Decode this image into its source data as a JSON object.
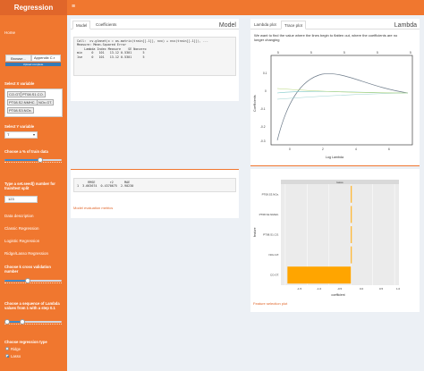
{
  "app": {
    "title": "Regression"
  },
  "header": {
    "menu_icon": "hamburger-icon",
    "menu_glyph": "≡"
  },
  "sidebar": {
    "home": "Home",
    "file_button": "Browse...",
    "file_name": "Appendix C.r",
    "upload_status": "Upload complete",
    "x_label": "Select X variable",
    "x_chips": [
      "CO.GT.",
      "PT08.S1.CO.",
      "PT08.S2.NMHC.",
      "NOx.GT.",
      "PT08.S3.NOx."
    ],
    "y_label": "Select Y variable",
    "y_value": "T",
    "train_label": "Choose a % of train data",
    "seed_label": "Type a set.seed() number for train/test split",
    "seed_value": "123",
    "nav_items": [
      "Data description",
      "Classic Regression",
      "Logistic Regression",
      "Ridge/Lasso Regression"
    ],
    "cv_label": "Choose k cross validation number",
    "lambda_label": "Choose a sequence of Lambda values from 1 with a step 0.1",
    "reg_type_label": "Choose regression type",
    "reg_options": [
      "Ridge",
      "Lasso"
    ],
    "reg_selected": "Lasso",
    "train_pct": 0.62,
    "cv_value": 0.4,
    "lambda_range": [
      0.05,
      0.32
    ]
  },
  "left_box": {
    "tabs": [
      "Model",
      "Coefficients"
    ],
    "active_tab": "Model",
    "title": "Model",
    "code_lines": [
      "Call:  cv.glmnet(x = as.matrix(train[[-1]], nvx) + nvx(train[[-1]]), ...",
      "",
      "Measure: Mean-Squared Error",
      "",
      "    Lambda Index Measure    SE Nonzero",
      "min     0   101   13.12 0.5301      5",
      "1se     0   101   13.12 0.5301      5"
    ]
  },
  "right_box": {
    "tabs": [
      "Lambda plot",
      "Trace plot"
    ],
    "active_tab": "Trace plot",
    "title": "Lambda",
    "description": "We want to find the value where the lines begin to flatten out, where the coefficients are no longer changing",
    "x_label": "Log Lambda",
    "y_label": "Coefficients",
    "top_ticks": [
      "5",
      "5",
      "5",
      "5",
      "5"
    ]
  },
  "eval_box": {
    "code_lines": [
      "      RMSE        r2      MAE",
      "1  3.663674  0.4370675  2.90230"
    ],
    "link": "Model evaluation metrics"
  },
  "feature_box": {
    "panel_title": "lasso",
    "y_label": "feature",
    "x_label": "coefficient",
    "features": [
      "PT08.S3.NOx.",
      "PT08.S2.NMHC.",
      "PT08.S1.CO.",
      "NOx.GT.",
      "CO.GT."
    ],
    "coefficients": [
      0.02,
      0.02,
      0.02,
      0.02,
      -1.45
    ],
    "link": "Feature selection plot"
  },
  "colors": {
    "accent": "#f0772f",
    "header_left": "#e0662a",
    "bar": "#ffa500",
    "curve": "#6c7a89"
  }
}
